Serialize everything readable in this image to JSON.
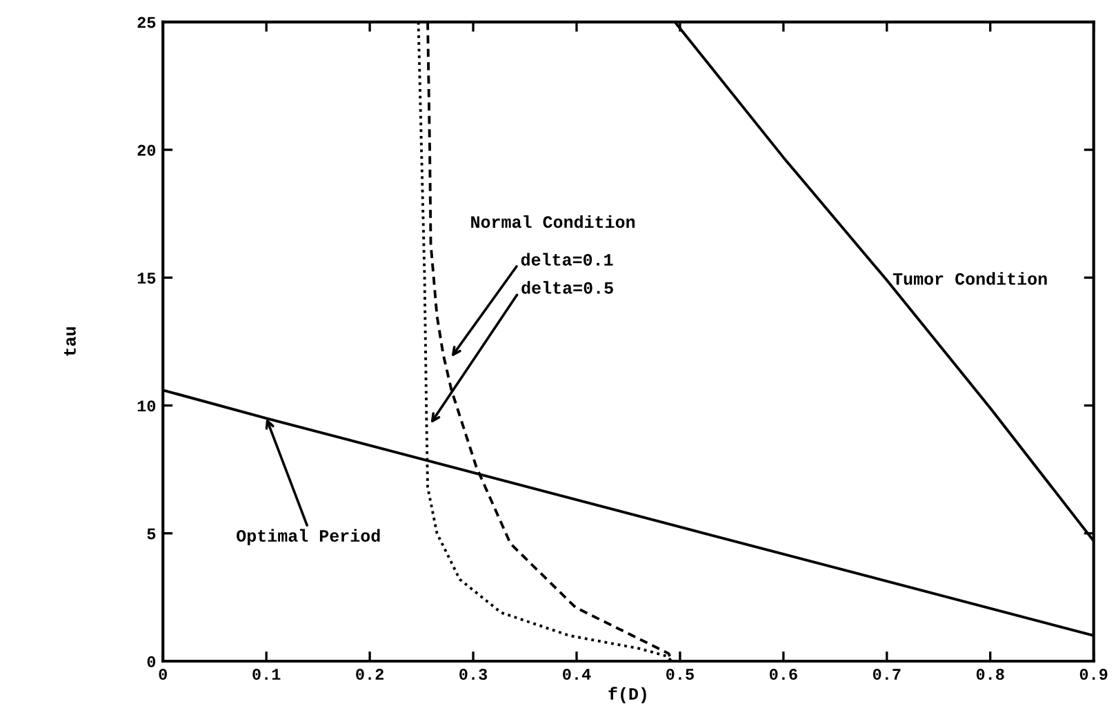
{
  "chart_data": {
    "type": "line",
    "xlabel": "f(D)",
    "ylabel": "tau",
    "xlim": [
      0,
      0.9
    ],
    "ylim": [
      0,
      25
    ],
    "xticks": [
      0,
      0.1,
      0.2,
      0.3,
      0.4,
      0.5,
      0.6,
      0.7,
      0.8,
      0.9
    ],
    "yticks": [
      0,
      5,
      10,
      15,
      20,
      25
    ],
    "grid": false,
    "legend": false,
    "marker": "none",
    "annotations": [
      "Normal Condition",
      {
        "text": "delta=0.1",
        "x": 0.279,
        "y": 11.9
      },
      {
        "text": "delta=0.5",
        "x": 0.259,
        "y": 9.3
      },
      {
        "text": "Optimal Period",
        "x": 0.1,
        "y": 9.5
      },
      {
        "text": "Tumor Condition",
        "x": 0.7,
        "y": 14.9
      }
    ],
    "series": [
      {
        "color": "#000000",
        "line_style": "solid",
        "x": [
          0.495,
          0.6,
          0.7,
          0.8,
          0.9
        ],
        "values": [
          25,
          19.7,
          14.9,
          9.9,
          4.7
        ]
      },
      {
        "color": "#000000",
        "line_style": "dashed",
        "x": [
          0.256,
          0.258,
          0.259,
          0.265,
          0.271,
          0.279,
          0.303,
          0.336,
          0.399,
          0.489,
          0.492
        ],
        "values": [
          25,
          20,
          16.3,
          13.5,
          12.0,
          10.6,
          7.6,
          4.6,
          2.1,
          0.3,
          0
        ]
      },
      {
        "color": "#000000",
        "line_style": "dotted",
        "x": [
          0.247,
          0.25,
          0.253,
          0.255,
          0.256,
          0.265,
          0.287,
          0.327,
          0.393,
          0.46,
          0.487,
          0.492
        ],
        "values": [
          25,
          20,
          15,
          9.1,
          6.8,
          5.0,
          3.2,
          1.9,
          1.0,
          0.5,
          0.2,
          0
        ]
      },
      {
        "color": "#000000",
        "line_style": "solid",
        "x": [
          0,
          0.1,
          0.9
        ],
        "values": [
          10.6,
          9.5,
          1.0
        ]
      }
    ]
  }
}
